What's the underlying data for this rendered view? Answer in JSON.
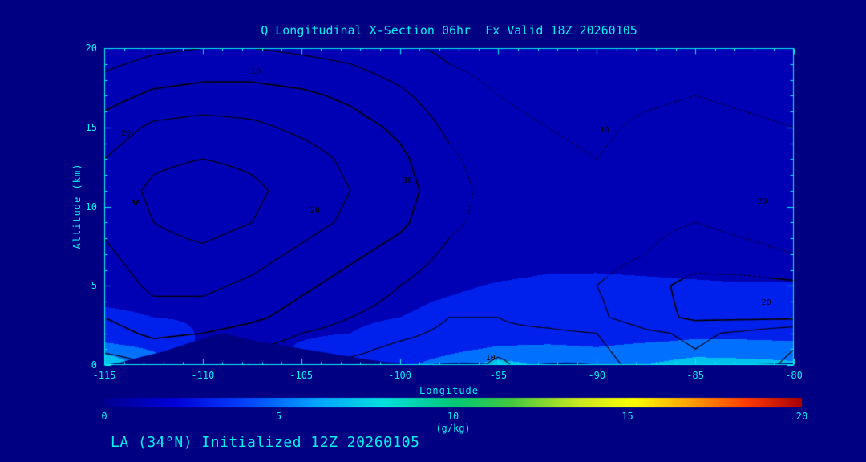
{
  "caption": "LA (34°N) Initialized 12Z 20260105",
  "colors": {
    "background": "#000082",
    "axis": "#00F0F0",
    "text": "#00F0F0",
    "contour_line": "#000000"
  },
  "chart_data": {
    "type": "heatmap",
    "title": "Q Longitudinal X-Section 06hr  Fx Valid 18Z 20260105",
    "xlabel": "Longitude",
    "ylabel": "Altitude (km)",
    "xlim": [
      -115,
      -80
    ],
    "ylim": [
      0,
      20
    ],
    "grid": "off",
    "x_ticks": [
      "-115",
      "-110",
      "-105",
      "-100",
      "-95",
      "-90",
      "-85",
      "-80"
    ],
    "y_ticks": [
      "0",
      "5",
      "10",
      "15",
      "20"
    ],
    "fill_field": {
      "name": "specific humidity Q",
      "units": "g/kg",
      "band_step_g_per_kg": 2,
      "lons": [
        -115,
        -112.5,
        -110,
        -107.5,
        -105,
        -102.5,
        -100,
        -97.5,
        -95,
        -92.5,
        -90,
        -87.5,
        -85,
        -82.5,
        -80
      ],
      "alts_km": [
        0,
        0.5,
        1,
        1.5,
        2,
        3,
        4,
        5,
        6,
        8,
        10,
        14,
        20
      ],
      "values": [
        [
          7.5,
          5.0,
          1.5,
          1.5,
          2.5,
          3.0,
          3.5,
          5.0,
          7.0,
          5.5,
          5.0,
          6.0,
          7.2,
          7.0,
          6.5
        ],
        [
          6.5,
          4.5,
          1.5,
          1.5,
          2.3,
          2.8,
          3.2,
          4.2,
          5.5,
          5.0,
          4.6,
          5.2,
          6.0,
          5.8,
          5.5
        ],
        [
          5.0,
          3.8,
          1.6,
          1.6,
          2.1,
          2.5,
          2.8,
          3.5,
          4.3,
          4.3,
          4.1,
          4.4,
          4.8,
          4.8,
          4.6
        ],
        [
          3.8,
          3.0,
          1.8,
          1.8,
          2.0,
          2.2,
          2.5,
          3.0,
          3.6,
          3.8,
          3.7,
          3.9,
          4.1,
          4.1,
          4.0
        ],
        [
          3.0,
          2.5,
          1.9,
          1.9,
          1.9,
          2.0,
          2.2,
          2.7,
          3.2,
          3.4,
          3.4,
          3.6,
          3.7,
          3.6,
          3.5
        ],
        [
          2.2,
          2.0,
          1.9,
          1.8,
          1.8,
          1.9,
          2.0,
          2.3,
          2.8,
          3.0,
          3.0,
          3.2,
          3.2,
          3.1,
          3.0
        ],
        [
          1.9,
          1.8,
          1.7,
          1.7,
          1.7,
          1.7,
          1.8,
          2.1,
          2.4,
          2.7,
          2.8,
          2.8,
          2.7,
          2.6,
          2.6
        ],
        [
          1.6,
          1.6,
          1.5,
          1.5,
          1.5,
          1.6,
          1.6,
          1.8,
          2.1,
          2.3,
          2.4,
          2.3,
          2.2,
          2.1,
          2.1
        ],
        [
          1.3,
          1.3,
          1.3,
          1.3,
          1.3,
          1.3,
          1.4,
          1.5,
          1.7,
          1.9,
          1.9,
          1.8,
          1.7,
          1.6,
          1.6
        ],
        [
          1.0,
          1.0,
          1.0,
          1.0,
          1.0,
          1.0,
          1.0,
          1.1,
          1.2,
          1.3,
          1.3,
          1.2,
          1.1,
          1.1,
          1.1
        ],
        [
          0.8,
          0.8,
          0.8,
          0.8,
          0.8,
          0.8,
          0.8,
          0.8,
          0.9,
          0.9,
          0.9,
          0.9,
          0.8,
          0.8,
          0.8
        ],
        [
          0.5,
          0.5,
          0.5,
          0.5,
          0.5,
          0.5,
          0.5,
          0.5,
          0.5,
          0.5,
          0.5,
          0.5,
          0.5,
          0.5,
          0.5
        ],
        [
          0.3,
          0.3,
          0.3,
          0.3,
          0.3,
          0.3,
          0.3,
          0.3,
          0.3,
          0.3,
          0.3,
          0.3,
          0.3,
          0.3,
          0.3
        ]
      ]
    },
    "overlay_contours": {
      "levels": [
        5,
        10,
        15,
        20,
        25,
        30,
        35
      ],
      "labeled_levels": [
        10,
        20,
        30
      ],
      "lons": [
        -115,
        -112.5,
        -110,
        -107.5,
        -105,
        -102.5,
        -100,
        -97.5,
        -95,
        -92.5,
        -90,
        -87.5,
        -85,
        -82.5,
        -80
      ],
      "alts_km": [
        0,
        1,
        2,
        3,
        5,
        7,
        9,
        11,
        13,
        15,
        17,
        20
      ],
      "values": [
        [
          12,
          15,
          14,
          12,
          11,
          9,
          8,
          7,
          11,
          7,
          8,
          12,
          14,
          12,
          9
        ],
        [
          16,
          18,
          17,
          15,
          13,
          11,
          9,
          8,
          9,
          8,
          9,
          13,
          15,
          13,
          10
        ],
        [
          18,
          21,
          20,
          18,
          15,
          13,
          11,
          9,
          9,
          9,
          10,
          14,
          16,
          14,
          11
        ],
        [
          20,
          23,
          23,
          21,
          18,
          15,
          13,
          10,
          10,
          12,
          14,
          18,
          21,
          21,
          21
        ],
        [
          22,
          26,
          26,
          24,
          21,
          18,
          15,
          12,
          11,
          13,
          15,
          18,
          22,
          22,
          21
        ],
        [
          24,
          28,
          29,
          27,
          24,
          21,
          18,
          14,
          12,
          12,
          13,
          15,
          17,
          16,
          15
        ],
        [
          26,
          30,
          32,
          30,
          27,
          24,
          21,
          16,
          13,
          12,
          12,
          14,
          15,
          14,
          13
        ],
        [
          27,
          31,
          33,
          31,
          28,
          25,
          22,
          17,
          13,
          12,
          11,
          13,
          14,
          13,
          12
        ],
        [
          25,
          29,
          30,
          29,
          27,
          24,
          21,
          16,
          12,
          11,
          10,
          12,
          13,
          12,
          11
        ],
        [
          22,
          26,
          27,
          26,
          24,
          22,
          19,
          14,
          11,
          10,
          9,
          11,
          12,
          11,
          10
        ],
        [
          18,
          21,
          22,
          22,
          21,
          19,
          16,
          12,
          10,
          9,
          8,
          9,
          10,
          9,
          8
        ],
        [
          12,
          14,
          15,
          15,
          14,
          13,
          11,
          9,
          8,
          7,
          6,
          7,
          8,
          7,
          6
        ]
      ]
    },
    "contour_labels": [
      {
        "text": "10",
        "lon": -107.3,
        "alt": 18.5
      },
      {
        "text": "20",
        "lon": -113.9,
        "alt": 14.6
      },
      {
        "text": "30",
        "lon": -113.4,
        "alt": 10.2
      },
      {
        "text": "20",
        "lon": -104.3,
        "alt": 9.7
      },
      {
        "text": "30",
        "lon": -99.6,
        "alt": 11.6
      },
      {
        "text": "10",
        "lon": -89.6,
        "alt": 14.8
      },
      {
        "text": "20",
        "lon": -81.6,
        "alt": 10.3
      },
      {
        "text": "10",
        "lon": -95.4,
        "alt": 0.4
      },
      {
        "text": "20",
        "lon": -81.4,
        "alt": 3.9
      }
    ],
    "terrain_profile": [
      [
        -115,
        0
      ],
      [
        -114.2,
        0.15
      ],
      [
        -113.5,
        0.4
      ],
      [
        -113,
        0.55
      ],
      [
        -112.5,
        0.7
      ],
      [
        -112,
        0.85
      ],
      [
        -111.5,
        1.05
      ],
      [
        -111,
        1.25
      ],
      [
        -110.5,
        1.45
      ],
      [
        -110,
        1.65
      ],
      [
        -109.5,
        1.85
      ],
      [
        -109.1,
        2.0
      ],
      [
        -108.7,
        1.95
      ],
      [
        -108.3,
        1.8
      ],
      [
        -107.8,
        1.65
      ],
      [
        -107.3,
        1.5
      ],
      [
        -106.8,
        1.4
      ],
      [
        -106.2,
        1.28
      ],
      [
        -105.6,
        1.15
      ],
      [
        -105,
        1.02
      ],
      [
        -104.4,
        0.9
      ],
      [
        -103.8,
        0.78
      ],
      [
        -103.2,
        0.66
      ],
      [
        -102.6,
        0.54
      ],
      [
        -102,
        0.42
      ],
      [
        -101.4,
        0.3
      ],
      [
        -100.8,
        0.2
      ],
      [
        -100.2,
        0.12
      ],
      [
        -99.6,
        0.06
      ],
      [
        -99,
        0.03
      ],
      [
        -98.2,
        0.06
      ],
      [
        -97.4,
        0.12
      ],
      [
        -96.8,
        0.16
      ],
      [
        -96.2,
        0.12
      ],
      [
        -95.6,
        0.07
      ],
      [
        -95,
        0.03
      ],
      [
        -94,
        0.02
      ],
      [
        -93,
        0.06
      ],
      [
        -92.2,
        0.12
      ],
      [
        -91.6,
        0.16
      ],
      [
        -91,
        0.12
      ],
      [
        -90.2,
        0.05
      ],
      [
        -89,
        0.02
      ],
      [
        -87,
        0.02
      ],
      [
        -85,
        0.02
      ],
      [
        -83,
        0.03
      ],
      [
        -82,
        0.05
      ],
      [
        -81,
        0.08
      ],
      [
        -80.4,
        0.12
      ],
      [
        -80,
        0.14
      ]
    ],
    "colorbar": {
      "min": 0,
      "max": 20,
      "ticks": [
        "0",
        "5",
        "10",
        "15",
        "20"
      ],
      "units": "(g/kg)",
      "stops": [
        [
          0.0,
          "#000090"
        ],
        [
          0.1,
          "#0000D8"
        ],
        [
          0.2,
          "#0040FF"
        ],
        [
          0.3,
          "#00A0FF"
        ],
        [
          0.4,
          "#00E0E0"
        ],
        [
          0.5,
          "#00C878"
        ],
        [
          0.58,
          "#40C840"
        ],
        [
          0.68,
          "#C8E820"
        ],
        [
          0.76,
          "#FFFF00"
        ],
        [
          0.84,
          "#FFA000"
        ],
        [
          0.92,
          "#FF3C00"
        ],
        [
          1.0,
          "#A80000"
        ]
      ]
    }
  }
}
